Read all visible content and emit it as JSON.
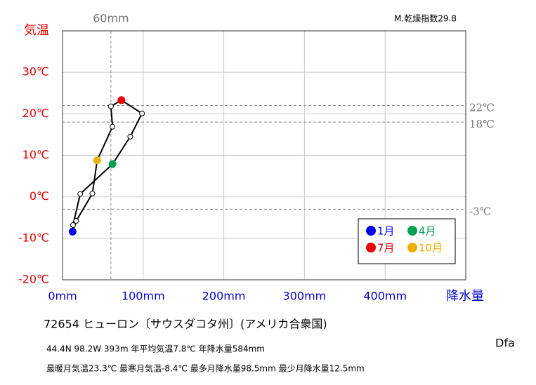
{
  "chart_data": {
    "type": "climograph",
    "dryness_index": "M.乾燥指数29.8",
    "y_label": "気温",
    "x_label": "降水量",
    "ylim": [
      -20,
      40
    ],
    "xlim": [
      0,
      500
    ],
    "yticks": [
      {
        "value": -20,
        "label": "-20℃"
      },
      {
        "value": -10,
        "label": "-10℃"
      },
      {
        "value": 0,
        "label": "0℃"
      },
      {
        "value": 10,
        "label": "10℃"
      },
      {
        "value": 20,
        "label": "20℃"
      },
      {
        "value": 30,
        "label": "30℃"
      }
    ],
    "xticks": [
      {
        "value": 0,
        "label": "0mm"
      },
      {
        "value": 100,
        "label": "100mm"
      },
      {
        "value": 200,
        "label": "200mm"
      },
      {
        "value": 300,
        "label": "300mm"
      },
      {
        "value": 400,
        "label": "400mm"
      }
    ],
    "ytick_color": "#e60000",
    "xtick_color": "#0000cc",
    "grid": true,
    "ref_y": [
      {
        "value": 22,
        "label": "22℃"
      },
      {
        "value": 18,
        "label": "18℃"
      },
      {
        "value": -3,
        "label": "-3℃"
      }
    ],
    "ref_x": [
      {
        "value": 60,
        "label": "60mm"
      }
    ],
    "categories": [
      "1月",
      null,
      null,
      "4月",
      null,
      null,
      "7月",
      null,
      null,
      "10月",
      null,
      null
    ],
    "x": [
      12.5,
      13,
      22,
      62,
      84,
      98.5,
      73,
      60,
      62,
      43,
      37,
      17
    ],
    "y": [
      -8.4,
      -6.8,
      0.7,
      7.9,
      14.5,
      20.1,
      23.3,
      21.8,
      16.9,
      8.8,
      0.8,
      -5.8
    ],
    "colors": [
      "#0000ee",
      null,
      null,
      "#00a050",
      null,
      null,
      "#ee0000",
      null,
      null,
      "#f0b000",
      null,
      null
    ],
    "station": "72654  ヒューロン〔サウスダコタ州〕(アメリカ合衆国)",
    "info1": "44.4N  98.2W 393m  年平均気温7.8℃ 年降水量584mm",
    "info2": "最暖月気温23.3℃ 最寒月気温-8.4℃ 最多月降水量98.5mm 最少月降水量12.5mm",
    "climate": "Dfa"
  }
}
